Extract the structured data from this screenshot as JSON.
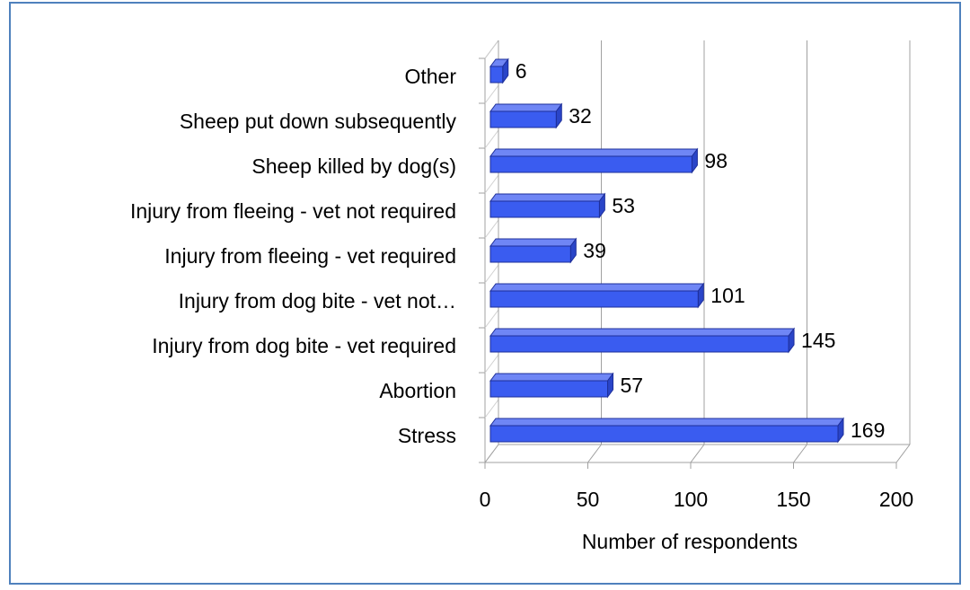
{
  "chart_data": {
    "type": "bar",
    "orientation": "horizontal",
    "categories": [
      "Stress",
      "Abortion",
      "Injury from dog bite - vet required",
      "Injury from dog bite - vet not…",
      "Injury from fleeing - vet required",
      "Injury from fleeing - vet not required",
      "Sheep killed by dog(s)",
      "Sheep put down subsequently",
      "Other"
    ],
    "values": [
      169,
      57,
      145,
      101,
      39,
      53,
      98,
      32,
      6
    ],
    "color": "#3a5cf0",
    "xlabel": "Number of respondents",
    "xlim": [
      0,
      200
    ],
    "xticks": [
      0,
      50,
      100,
      150,
      200
    ],
    "grid": true
  }
}
